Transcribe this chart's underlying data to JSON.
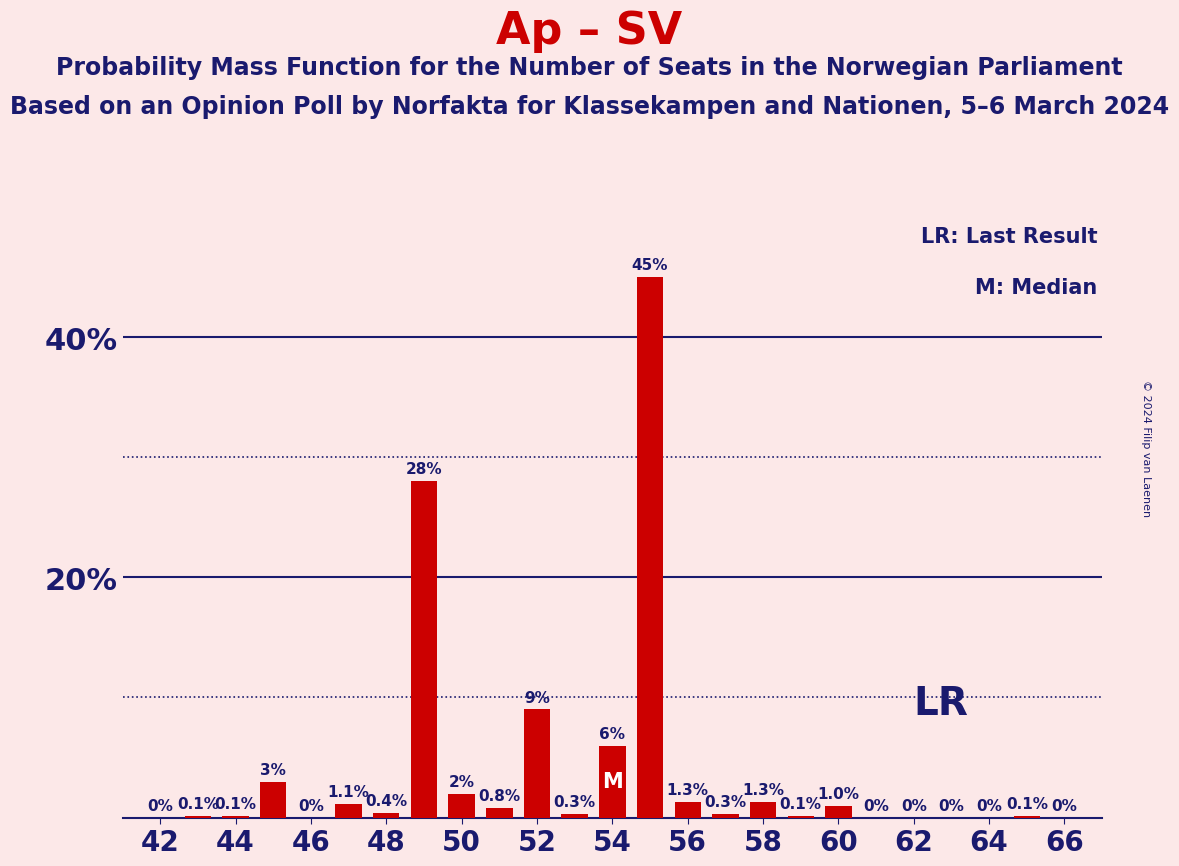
{
  "title": "Ap – SV",
  "subtitle1": "Probability Mass Function for the Number of Seats in the Norwegian Parliament",
  "subtitle2": "Based on an Opinion Poll by Norfakta for Klassekampen and Nationen, 5–6 March 2024",
  "copyright": "© 2024 Filip van Laenen",
  "legend_lr": "LR: Last Result",
  "legend_m": "M: Median",
  "lr_label": "LR",
  "m_label": "M",
  "seats": [
    42,
    43,
    44,
    45,
    46,
    47,
    48,
    49,
    50,
    51,
    52,
    53,
    54,
    55,
    56,
    57,
    58,
    59,
    60,
    61,
    62,
    63,
    64,
    65,
    66
  ],
  "values": [
    0.0,
    0.1,
    0.1,
    3.0,
    0.0,
    1.1,
    0.4,
    28.0,
    2.0,
    0.8,
    9.0,
    0.3,
    6.0,
    45.0,
    1.3,
    0.3,
    1.3,
    0.1,
    1.0,
    0.0,
    0.0,
    0.0,
    0.0,
    0.1,
    0.0
  ],
  "bar_labels": [
    "0%",
    "0.1%",
    "0.1%",
    "3%",
    "0%",
    "1.1%",
    "0.4%",
    "28%",
    "2%",
    "0.8%",
    "9%",
    "0.3%",
    "6%",
    "45%",
    "1.3%",
    "0.3%",
    "1.3%",
    "0.1%",
    "1.0%",
    "0%",
    "0%",
    "0%",
    "0%",
    "0.1%",
    "0%"
  ],
  "bar_color": "#cc0000",
  "lr_seat": 55,
  "median_seat": 54,
  "ylim": [
    0,
    50
  ],
  "dotted_lines": [
    10,
    30
  ],
  "solid_lines": [
    20,
    40
  ],
  "xtick_seats": [
    42,
    44,
    46,
    48,
    50,
    52,
    54,
    56,
    58,
    60,
    62,
    64,
    66
  ],
  "background_color": "#fce8e8",
  "title_color": "#cc0000",
  "text_color": "#1a1a6e",
  "title_fontsize": 32,
  "subtitle_fontsize": 17,
  "bar_label_fontsize": 11,
  "axis_tick_fontsize": 20,
  "ytick_label_fontsize": 22,
  "legend_fontsize": 15,
  "lr_annot_fontsize": 28,
  "m_inside_fontsize": 15
}
